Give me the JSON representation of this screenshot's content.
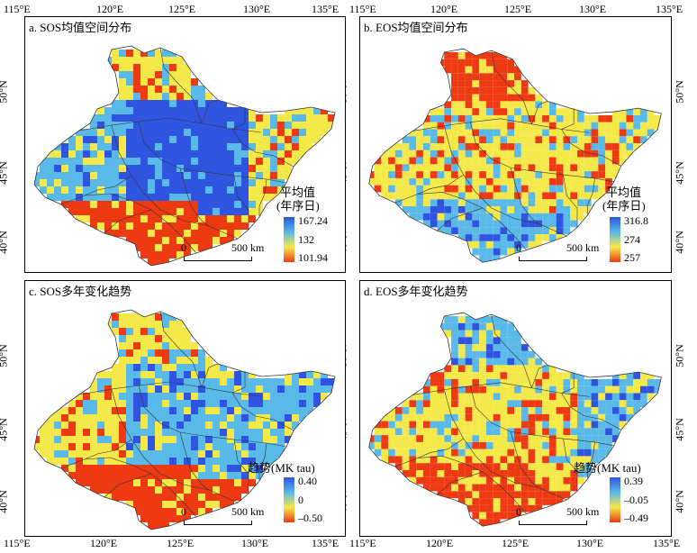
{
  "axes": {
    "lon_labels": [
      "115°E",
      "120°E",
      "125°E",
      "130°E",
      "135°E"
    ],
    "lat_labels": [
      "50°N",
      "45°N",
      "40°N"
    ]
  },
  "panels": [
    {
      "id": "a",
      "title": "a. SOS均值空间分布",
      "legend_title_1": "平均值",
      "legend_title_2": "(年序日)",
      "legend_values": [
        "167.24",
        "132",
        "101.94"
      ],
      "scale_zero": "0",
      "scale_label": "500 km",
      "palette": [
        "#2f55e0",
        "#59b9e8",
        "#f5e94a",
        "#ee3a12"
      ]
    },
    {
      "id": "b",
      "title": "b. EOS均值空间分布",
      "legend_title_1": "平均值",
      "legend_title_2": "(年序日)",
      "legend_values": [
        "316.8",
        "274",
        "257"
      ],
      "scale_zero": "0",
      "scale_label": "500 km",
      "palette": [
        "#2f55e0",
        "#59b9e8",
        "#f5e94a",
        "#ee3a12"
      ]
    },
    {
      "id": "c",
      "title": "c. SOS多年变化趋势",
      "legend_title_1": "趋势(MK tau)",
      "legend_title_2": "",
      "legend_values": [
        "0.40",
        "0",
        "–0.50"
      ],
      "scale_zero": "0",
      "scale_label": "500 km",
      "palette": [
        "#2f55e0",
        "#59b9e8",
        "#f5e94a",
        "#ee3a12"
      ]
    },
    {
      "id": "d",
      "title": "d. EOS多年变化趋势",
      "legend_title_1": "趋势(MK tau)",
      "legend_title_2": "",
      "legend_values": [
        "0.39",
        "–0.05",
        "–0.49"
      ],
      "scale_zero": "0",
      "scale_label": "500 km",
      "palette": [
        "#2f55e0",
        "#59b9e8",
        "#f5e94a",
        "#ee3a12"
      ]
    }
  ],
  "colors": {
    "high": "#2f55e0",
    "mid_high": "#59b9e8",
    "mid": "#f5e94a",
    "low": "#ee3a12",
    "boundary": "#333333"
  }
}
